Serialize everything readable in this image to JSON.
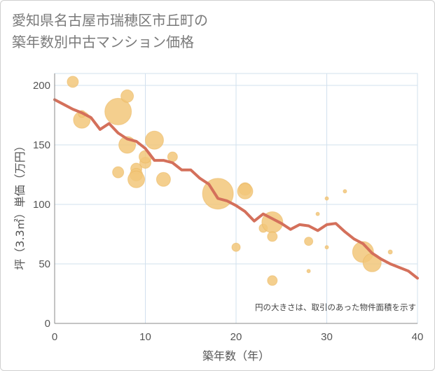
{
  "title_lines": [
    "愛知県名古屋市瑞穂区市丘町の",
    "築年数別中古マンション価格"
  ],
  "colors": {
    "bubble": "#f2c77a",
    "bubble_dark": "#eab35a",
    "line": "#d4705b",
    "grid": "#d2e0ee",
    "axis": "#888888"
  },
  "chart_data": {
    "type": "scatter",
    "title": "愛知県名古屋市瑞穂区市丘町の築年数別中古マンション価格",
    "xlabel": "築年数（年）",
    "ylabel": "坪（3.3㎡）単価（万円）",
    "xlim": [
      0,
      40
    ],
    "ylim": [
      0,
      210
    ],
    "x_ticks": [
      0,
      10,
      20,
      30,
      40
    ],
    "y_ticks": [
      0,
      50,
      100,
      150,
      200
    ],
    "grid": true,
    "annotation": "円の大きさは、取引のあった物件面積を示す",
    "bubbles": [
      {
        "x": 2,
        "y": 203,
        "r": 8
      },
      {
        "x": 3,
        "y": 171,
        "r": 12
      },
      {
        "x": 3,
        "y": 176,
        "r": 5
      },
      {
        "x": 7,
        "y": 178,
        "r": 19
      },
      {
        "x": 7,
        "y": 127,
        "r": 8
      },
      {
        "x": 8,
        "y": 191,
        "r": 9
      },
      {
        "x": 8,
        "y": 150,
        "r": 12
      },
      {
        "x": 9,
        "y": 130,
        "r": 8
      },
      {
        "x": 9,
        "y": 125,
        "r": 9
      },
      {
        "x": 9,
        "y": 121,
        "r": 12
      },
      {
        "x": 10,
        "y": 135,
        "r": 8
      },
      {
        "x": 10,
        "y": 140,
        "r": 9
      },
      {
        "x": 11,
        "y": 154,
        "r": 13
      },
      {
        "x": 12,
        "y": 121,
        "r": 10
      },
      {
        "x": 13,
        "y": 140,
        "r": 7
      },
      {
        "x": 18,
        "y": 109,
        "r": 22
      },
      {
        "x": 20,
        "y": 64,
        "r": 6
      },
      {
        "x": 21,
        "y": 113,
        "r": 9
      },
      {
        "x": 21,
        "y": 111,
        "r": 11
      },
      {
        "x": 23,
        "y": 80,
        "r": 6
      },
      {
        "x": 24,
        "y": 85,
        "r": 15
      },
      {
        "x": 24,
        "y": 73,
        "r": 7
      },
      {
        "x": 24,
        "y": 36,
        "r": 7
      },
      {
        "x": 28,
        "y": 69,
        "r": 6
      },
      {
        "x": 28,
        "y": 44,
        "r": 2.5
      },
      {
        "x": 29,
        "y": 92,
        "r": 2.5
      },
      {
        "x": 30,
        "y": 105,
        "r": 2.5
      },
      {
        "x": 30,
        "y": 64,
        "r": 2.5
      },
      {
        "x": 32,
        "y": 111,
        "r": 2.5
      },
      {
        "x": 34,
        "y": 60,
        "r": 15
      },
      {
        "x": 35,
        "y": 51,
        "r": 13
      },
      {
        "x": 37,
        "y": 60,
        "r": 3
      }
    ],
    "trend": {
      "x": [
        0,
        1,
        2,
        3,
        4,
        5,
        6,
        7,
        8,
        9,
        10,
        11,
        12,
        13,
        14,
        15,
        16,
        17,
        18,
        19,
        20,
        21,
        22,
        23,
        24,
        25,
        26,
        27,
        28,
        29,
        30,
        31,
        32,
        33,
        34,
        35,
        36,
        37,
        38,
        39,
        40
      ],
      "y": [
        188,
        184,
        180,
        177,
        173,
        163,
        168,
        160,
        155,
        153,
        147,
        137,
        137,
        135,
        129,
        129,
        122,
        117,
        105,
        103,
        99,
        94,
        86,
        92,
        88,
        84,
        79,
        83,
        82,
        78,
        83,
        84,
        77,
        71,
        67,
        59,
        54,
        50,
        47,
        44,
        38
      ]
    }
  }
}
